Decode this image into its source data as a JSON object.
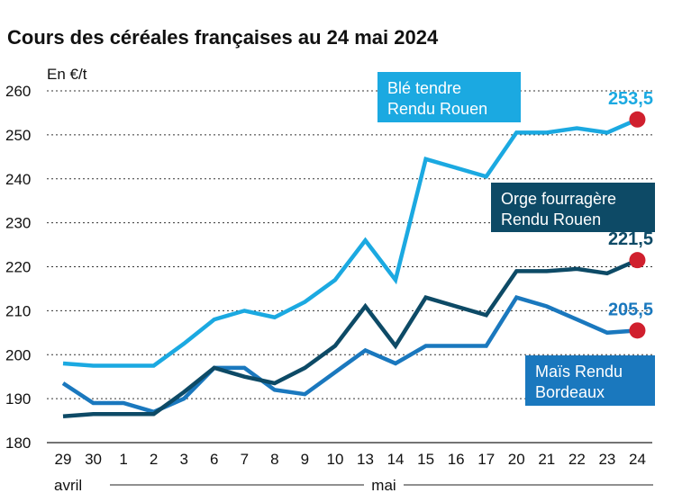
{
  "chart_data": {
    "type": "line",
    "title": "Cours des céréales françaises au 24 mai 2024",
    "unit_label": "En €/t",
    "ylim": [
      180,
      260
    ],
    "yticks": [
      "180",
      "190",
      "200",
      "210",
      "220",
      "230",
      "240",
      "250",
      "260"
    ],
    "grid": true,
    "categories": [
      "29",
      "30",
      "1",
      "2",
      "3",
      "6",
      "7",
      "8",
      "9",
      "10",
      "13",
      "14",
      "15",
      "16",
      "17",
      "20",
      "21",
      "22",
      "23",
      "24"
    ],
    "month_labels": [
      "avril",
      "mai"
    ],
    "series": [
      {
        "name": "Blé tendre Rendu Rouen",
        "name_lines": [
          "Blé tendre",
          "Rendu Rouen"
        ],
        "color": "#1ba9e1",
        "values": [
          198,
          197.5,
          197.5,
          197.5,
          202.5,
          208,
          210,
          208.5,
          212,
          217,
          226,
          217,
          244.5,
          242.5,
          240.5,
          250.5,
          250.5,
          251.5,
          250.5,
          253.5
        ],
        "last_label": "253,5"
      },
      {
        "name": "Orge fourragère Rendu Rouen",
        "name_lines": [
          "Orge fourragère",
          "Rendu Rouen"
        ],
        "color": "#0d4a66",
        "values": [
          186,
          186.5,
          186.5,
          186.5,
          191.5,
          197,
          195,
          193.5,
          197,
          202,
          211,
          202,
          213,
          211,
          209,
          219,
          219,
          219.5,
          218.5,
          221.5
        ],
        "last_label": "221,5"
      },
      {
        "name": "Maïs Rendu Bordeaux",
        "name_lines": [
          "Maïs Rendu",
          "Bordeaux"
        ],
        "color": "#1a78be",
        "values": [
          193.5,
          189,
          189,
          187,
          190,
          197,
          197,
          192,
          191,
          196,
          201,
          198,
          202,
          202,
          202,
          213,
          211,
          208,
          205,
          205.5
        ],
        "last_label": "205,5"
      }
    ],
    "endpoint_marker_color": "#d0202e"
  }
}
